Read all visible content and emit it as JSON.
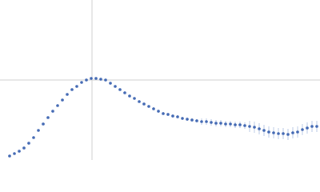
{
  "chart_data": {
    "type": "scatter",
    "color": "#3a62b0",
    "error_color": "#a9bbe0",
    "xlim": [
      0,
      400
    ],
    "ylim": [
      0,
      200
    ],
    "xticks": [
      115
    ],
    "yticks": [
      100
    ],
    "grid": true,
    "x": [
      12,
      18,
      24,
      30,
      36,
      42,
      48,
      54,
      60,
      66,
      72,
      78,
      84,
      90,
      96,
      102,
      108,
      114,
      120,
      126,
      132,
      138,
      144,
      150,
      156,
      162,
      168,
      174,
      180,
      186,
      192,
      198,
      204,
      210,
      216,
      222,
      228,
      234,
      240,
      246,
      252,
      258,
      264,
      270,
      276,
      282,
      288,
      294,
      300,
      306,
      312,
      318,
      324,
      330,
      336,
      342,
      348,
      354,
      360,
      366,
      372,
      378,
      384,
      390,
      396
    ],
    "values": [
      5,
      8,
      11,
      15,
      21,
      28,
      37,
      45,
      53,
      61,
      68,
      75,
      82,
      88,
      92,
      97,
      100,
      102,
      102,
      101,
      100,
      96,
      92,
      88,
      84,
      80,
      77,
      73,
      70,
      67,
      64,
      61,
      58,
      57,
      55,
      54,
      52,
      51,
      50,
      49,
      48,
      48,
      47,
      46,
      46,
      45,
      45,
      44,
      44,
      43,
      42,
      41,
      39,
      37,
      35,
      34,
      33,
      33,
      32,
      34,
      35,
      38,
      40,
      42,
      42
    ],
    "errors": [
      1,
      1,
      1,
      1,
      1,
      1,
      1,
      1,
      1,
      1,
      1,
      1,
      1,
      1,
      1,
      1,
      1,
      1,
      1,
      1,
      1,
      1,
      1,
      1,
      1,
      1,
      1,
      1,
      1,
      1,
      2,
      2,
      2,
      2,
      2,
      2,
      2,
      2,
      2,
      2,
      4,
      4,
      4,
      4,
      4,
      4,
      4,
      4,
      4,
      4,
      7,
      7,
      7,
      7,
      7,
      7,
      7,
      7,
      7,
      7,
      7,
      7,
      7,
      7,
      7
    ]
  }
}
